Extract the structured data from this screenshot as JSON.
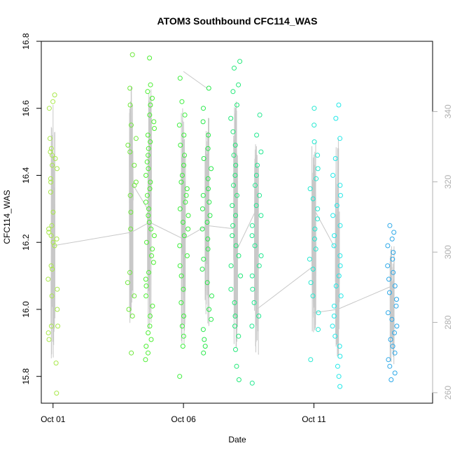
{
  "chart_data": {
    "type": "scatter",
    "title": "ATOM3 Southbound CFC114_WAS",
    "xlabel": "Date",
    "ylabel": "CFC114_WAS",
    "x_ticks": [
      "Oct 01",
      "Oct 06",
      "Oct 11"
    ],
    "x_tick_days": [
      1,
      6,
      11
    ],
    "xlim_days": [
      0.55,
      15.55
    ],
    "ylim": [
      15.72,
      16.8
    ],
    "y_ticks": [
      15.8,
      16.0,
      16.2,
      16.4,
      16.6,
      16.8
    ],
    "y2_ticks": [
      260,
      280,
      300,
      320,
      340
    ],
    "y2lim": [
      257,
      360
    ],
    "colors": {
      "yellow_green": "#a8e84a",
      "green": "#4cee32",
      "bright_green": "#22e84c",
      "teal_green": "#22e8a0",
      "cyan": "#22e8e8",
      "blue": "#2ba8e8",
      "trace": "#c8c8c8"
    },
    "clusters": [
      {
        "day": 1.0,
        "color": "#a8e84a",
        "values": [
          15.75,
          15.84,
          15.91,
          15.93,
          15.95,
          15.95,
          16.0,
          16.04,
          16.06,
          16.09,
          16.12,
          16.13,
          16.19,
          16.2,
          16.21,
          16.22,
          16.23,
          16.24,
          16.25,
          16.29,
          16.35,
          16.38,
          16.39,
          16.42,
          16.43,
          16.45,
          16.46,
          16.47,
          16.48,
          16.51,
          16.6,
          16.62,
          16.64
        ]
      },
      {
        "day": 4.0,
        "color": "#6ee83c",
        "values": [
          15.87,
          15.98,
          16.0,
          16.04,
          16.08,
          16.11,
          16.24,
          16.29,
          16.34,
          16.37,
          16.38,
          16.43,
          16.47,
          16.49,
          16.51,
          16.55,
          16.61,
          16.66,
          16.76
        ]
      },
      {
        "day": 4.7,
        "color": "#4cee32",
        "values": [
          15.85,
          15.87,
          15.89,
          15.91,
          15.93,
          15.95,
          15.98,
          16.01,
          16.04,
          16.07,
          16.09,
          16.11,
          16.14,
          16.16,
          16.18,
          16.2,
          16.22,
          16.24,
          16.26,
          16.28,
          16.3,
          16.32,
          16.34,
          16.36,
          16.38,
          16.4,
          16.42,
          16.44,
          16.46,
          16.48,
          16.5,
          16.52,
          16.54,
          16.56,
          16.58,
          16.61,
          16.63,
          16.65,
          16.67,
          16.75
        ]
      },
      {
        "day": 6.0,
        "color": "#3cee3c",
        "values": [
          15.8,
          15.89,
          15.92,
          15.95,
          15.98,
          16.02,
          16.06,
          16.1,
          16.13,
          16.16,
          16.19,
          16.22,
          16.24,
          16.26,
          16.28,
          16.3,
          16.32,
          16.34,
          16.36,
          16.38,
          16.4,
          16.43,
          16.46,
          16.49,
          16.52,
          16.55,
          16.58,
          16.62,
          16.69
        ]
      },
      {
        "day": 6.9,
        "color": "#28e84a",
        "values": [
          15.87,
          15.89,
          15.91,
          15.94,
          15.97,
          16.0,
          16.04,
          16.08,
          16.12,
          16.15,
          16.18,
          16.21,
          16.24,
          16.26,
          16.28,
          16.3,
          16.32,
          16.34,
          16.36,
          16.39,
          16.42,
          16.45,
          16.48,
          16.52,
          16.56,
          16.6,
          16.66
        ]
      },
      {
        "day": 8.0,
        "color": "#22e878",
        "values": [
          15.79,
          15.83,
          15.88,
          15.92,
          15.95,
          15.98,
          16.02,
          16.06,
          16.1,
          16.13,
          16.16,
          16.19,
          16.22,
          16.25,
          16.28,
          16.31,
          16.34,
          16.37,
          16.4,
          16.43,
          16.46,
          16.49,
          16.53,
          16.57,
          16.61,
          16.65,
          16.67,
          16.72,
          16.74
        ]
      },
      {
        "day": 8.8,
        "color": "#22e890",
        "values": [
          15.78,
          15.95,
          15.98,
          16.02,
          16.06,
          16.1,
          16.13,
          16.16,
          16.19,
          16.22,
          16.25,
          16.28,
          16.31,
          16.34,
          16.37,
          16.4,
          16.43,
          16.47,
          16.52,
          16.58
        ]
      },
      {
        "day": 11.0,
        "color": "#22e8d0",
        "values": [
          15.85,
          15.94,
          15.99,
          16.04,
          16.08,
          16.12,
          16.15,
          16.18,
          16.21,
          16.24,
          16.27,
          16.3,
          16.33,
          16.36,
          16.39,
          16.42,
          16.46,
          16.5,
          16.55,
          16.6
        ]
      },
      {
        "day": 11.9,
        "color": "#22e8e8",
        "values": [
          15.77,
          15.8,
          15.83,
          15.86,
          15.89,
          15.92,
          15.95,
          15.98,
          16.01,
          16.04,
          16.07,
          16.1,
          16.13,
          16.16,
          16.19,
          16.22,
          16.25,
          16.28,
          16.31,
          16.34,
          16.37,
          16.4,
          16.45,
          16.51,
          16.57,
          16.61
        ]
      },
      {
        "day": 14.0,
        "color": "#2ba8e8",
        "values": [
          15.79,
          15.81,
          15.83,
          15.85,
          15.87,
          15.89,
          15.91,
          15.93,
          15.95,
          15.97,
          15.99,
          16.01,
          16.03,
          16.05,
          16.07,
          16.09,
          16.11,
          16.13,
          16.15,
          16.17,
          16.19,
          16.21,
          16.23,
          16.25
        ]
      }
    ],
    "trace_segments": [
      [
        [
          1.0,
          16.19
        ],
        [
          1.0,
          16.61
        ],
        [
          1.0,
          15.96
        ],
        [
          1.0,
          16.19
        ]
      ],
      [
        [
          1.0,
          16.19
        ],
        [
          4.0,
          16.23
        ]
      ],
      [
        [
          4.0,
          16.23
        ],
        [
          4.7,
          16.26
        ]
      ],
      [
        [
          4.0,
          16.38
        ],
        [
          4.7,
          16.29
        ]
      ],
      [
        [
          4.7,
          16.26
        ],
        [
          6.0,
          16.21
        ]
      ],
      [
        [
          6.0,
          16.21
        ],
        [
          6.9,
          16.25
        ]
      ],
      [
        [
          6.0,
          16.71
        ],
        [
          6.9,
          16.66
        ]
      ],
      [
        [
          6.9,
          16.25
        ],
        [
          8.0,
          16.24
        ]
      ],
      [
        [
          8.0,
          16.17
        ],
        [
          8.8,
          16.3
        ]
      ],
      [
        [
          8.8,
          16.0
        ],
        [
          11.0,
          16.13
        ]
      ],
      [
        [
          11.0,
          15.99
        ],
        [
          11.9,
          16.0
        ]
      ],
      [
        [
          11.9,
          16.0
        ],
        [
          14.0,
          16.07
        ]
      ],
      [
        [
          11.0,
          16.3
        ],
        [
          11.9,
          16.17
        ]
      ]
    ],
    "grid": false,
    "legend": "none"
  }
}
